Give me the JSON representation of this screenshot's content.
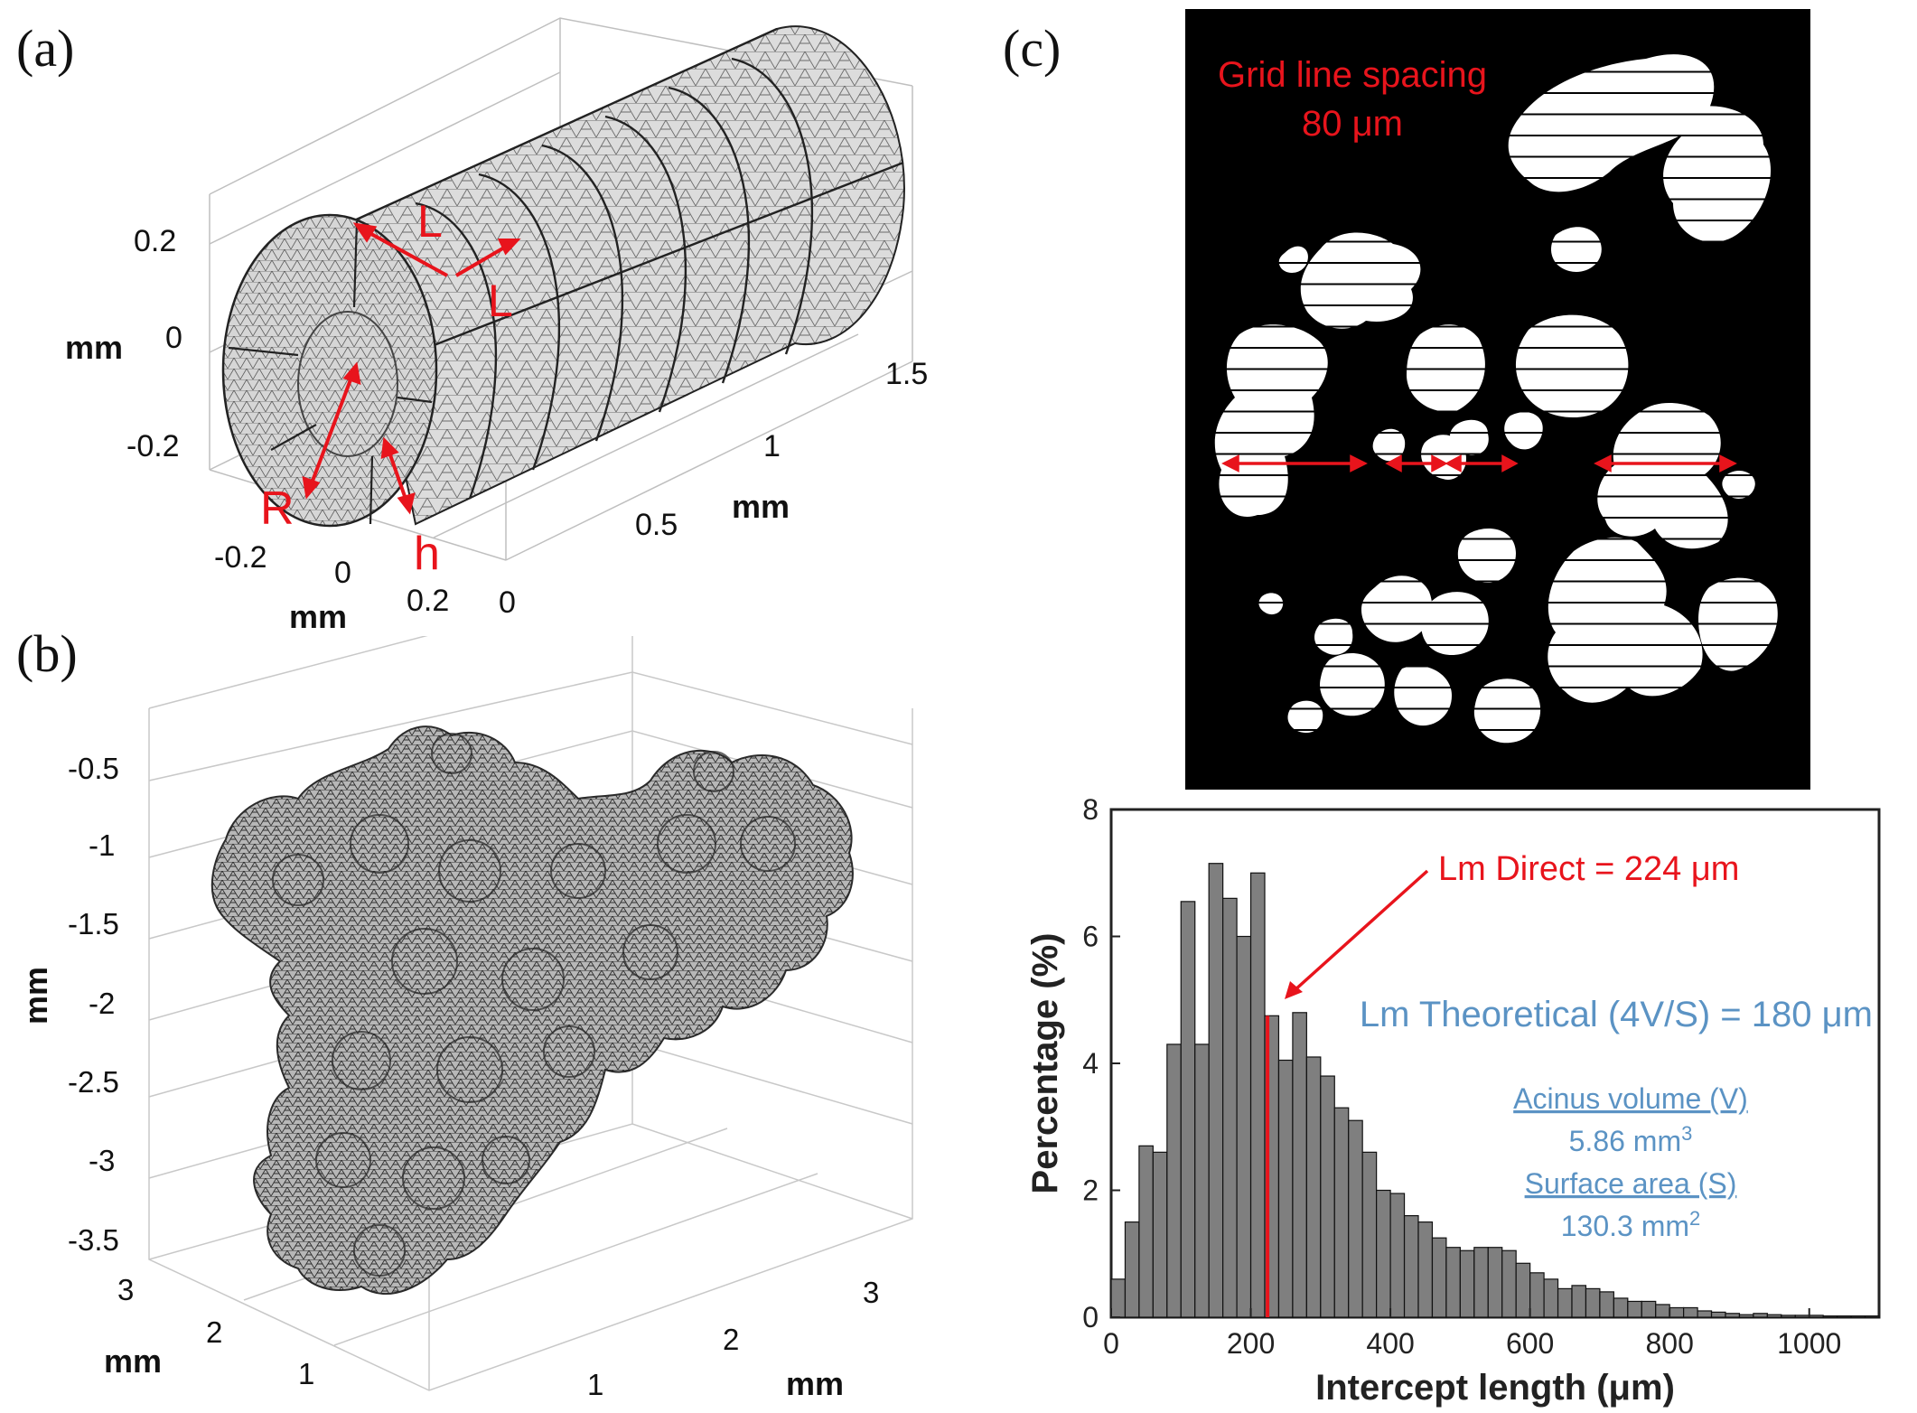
{
  "panel_labels": {
    "a": "(a)",
    "b": "(b)",
    "c": "(c)"
  },
  "panel_a": {
    "axis_z_label": "mm",
    "axis_x_label": "mm",
    "axis_y_label": "mm",
    "z_ticks": [
      "0.2",
      "0",
      "-0.2"
    ],
    "x_ticks": [
      "-0.2",
      "0",
      "0.2"
    ],
    "y_ticks": [
      "0",
      "0.5",
      "1",
      "1.5"
    ],
    "annotations": {
      "L1": "L",
      "L2": "L",
      "R": "R",
      "h": "h"
    },
    "colors": {
      "mesh_fill": "#dcdcdc",
      "mesh_line": "#555555",
      "annotation": "#e8141c"
    }
  },
  "panel_b": {
    "axis_z_label": "mm",
    "axis_x_label": "mm",
    "axis_y_label": "mm",
    "z_ticks": [
      "-0.5",
      "-1",
      "-1.5",
      "-2",
      "-2.5",
      "-3",
      "-3.5"
    ],
    "y_ticks": [
      "3",
      "2",
      "1"
    ],
    "x_ticks": [
      "1",
      "2",
      "3"
    ],
    "colors": {
      "mesh": "#4a4a4a"
    }
  },
  "panel_c_image": {
    "grid_text_line1": "Grid line spacing",
    "grid_text_line2": "80 μm",
    "colors": {
      "background": "#000000",
      "airspace": "#ffffff",
      "grid_line": "#000000",
      "arrow": "#e8141c"
    }
  },
  "chart_data": {
    "type": "bar",
    "xlabel": "Intercept length (μm)",
    "ylabel": "Percentage (%)",
    "xlim": [
      0,
      1100
    ],
    "ylim": [
      0,
      8
    ],
    "x_ticks": [
      0,
      200,
      400,
      600,
      800,
      1000
    ],
    "y_ticks": [
      0,
      2,
      4,
      6,
      8
    ],
    "bin_width": 20,
    "bin_starts": [
      0,
      20,
      40,
      60,
      80,
      100,
      120,
      140,
      160,
      180,
      200,
      220,
      240,
      260,
      280,
      300,
      320,
      340,
      360,
      380,
      400,
      420,
      440,
      460,
      480,
      500,
      520,
      540,
      560,
      580,
      600,
      620,
      640,
      660,
      680,
      700,
      720,
      740,
      760,
      780,
      800,
      820,
      840,
      860,
      880,
      900,
      920,
      940,
      960,
      980,
      1000,
      1020,
      1040,
      1060,
      1080
    ],
    "values": [
      0.6,
      1.5,
      2.7,
      2.6,
      4.3,
      6.55,
      4.3,
      7.15,
      6.6,
      6.0,
      7.0,
      4.75,
      4.05,
      4.8,
      4.1,
      3.8,
      3.3,
      3.1,
      2.6,
      2.0,
      1.95,
      1.6,
      1.5,
      1.25,
      1.1,
      1.05,
      1.1,
      1.1,
      1.05,
      0.85,
      0.7,
      0.6,
      0.45,
      0.5,
      0.45,
      0.4,
      0.3,
      0.25,
      0.25,
      0.2,
      0.15,
      0.15,
      0.1,
      0.08,
      0.06,
      0.04,
      0.06,
      0.04,
      0.03,
      0.03,
      0.03,
      0.02,
      0.02,
      0.02,
      0.02
    ],
    "bar_color": "#7f7f7f",
    "lm_direct": {
      "label": "Lm Direct = 224 μm",
      "value": 224,
      "color": "#e8141c"
    },
    "lm_theoretical": {
      "label": "Lm Theoretical (4V/S) = 180 μm",
      "color": "#5b93c4"
    },
    "acinus_volume": {
      "label": "Acinus volume (V)",
      "value": "5.86 mm",
      "sup": "3"
    },
    "surface_area": {
      "label": "Surface area (S)",
      "value": "130.3 mm",
      "sup": "2"
    }
  }
}
